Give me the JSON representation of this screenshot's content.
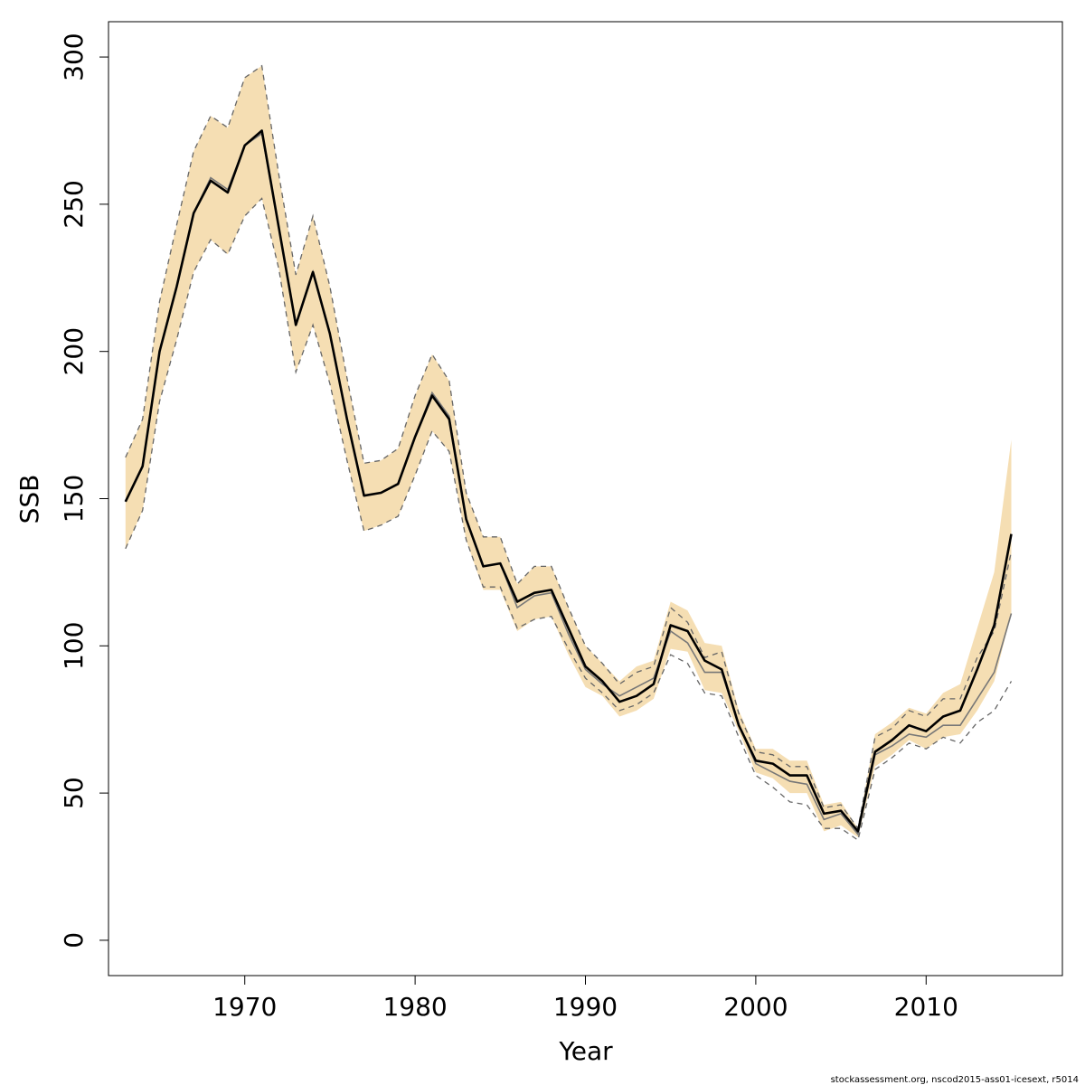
{
  "chart_data": {
    "type": "line",
    "title": "",
    "xlabel": "Year",
    "ylabel": "SSB",
    "xlim": [
      1962,
      2018
    ],
    "ylim": [
      -12,
      312
    ],
    "x_ticks": [
      1970,
      1980,
      1990,
      2000,
      2010
    ],
    "y_ticks": [
      0,
      50,
      100,
      150,
      200,
      250,
      300
    ],
    "grid": false,
    "legend": "none",
    "x": [
      1963,
      1964,
      1965,
      1966,
      1967,
      1968,
      1969,
      1970,
      1971,
      1972,
      1973,
      1974,
      1975,
      1976,
      1977,
      1978,
      1979,
      1980,
      1981,
      1982,
      1983,
      1984,
      1985,
      1986,
      1987,
      1988,
      1989,
      1990,
      1991,
      1992,
      1993,
      1994,
      1995,
      1996,
      1997,
      1998,
      1999,
      2000,
      2001,
      2002,
      2003,
      2004,
      2005,
      2006,
      2007,
      2008,
      2009,
      2010,
      2011,
      2012,
      2013,
      2014,
      2015
    ],
    "series": [
      {
        "role": "upper-bound",
        "values": [
          164,
          177,
          217,
          243,
          268,
          280,
          276,
          293,
          297,
          260,
          226,
          246,
          222,
          191,
          162,
          163,
          167,
          185,
          199,
          190,
          152,
          137,
          137,
          121,
          127,
          127,
          113,
          100,
          94,
          88,
          93,
          95,
          115,
          112,
          101,
          100,
          78,
          65,
          65,
          61,
          61,
          46,
          47,
          38,
          70,
          74,
          79,
          77,
          84,
          87,
          106,
          125,
          170
        ]
      },
      {
        "role": "lower-bound",
        "values": [
          133,
          146,
          183,
          204,
          227,
          238,
          233,
          246,
          252,
          228,
          193,
          209,
          189,
          163,
          139,
          141,
          144,
          158,
          173,
          166,
          136,
          119,
          119,
          105,
          109,
          110,
          97,
          86,
          83,
          76,
          78,
          82,
          99,
          98,
          85,
          84,
          71,
          57,
          55,
          50,
          50,
          37,
          39,
          35,
          59,
          63,
          68,
          65,
          69,
          70,
          78,
          88,
          111
        ]
      },
      {
        "role": "estimate",
        "color": "#000000",
        "values": [
          149,
          161,
          200,
          222,
          247,
          258,
          254,
          270,
          275,
          242,
          209,
          227,
          206,
          177,
          151,
          152,
          155,
          171,
          185,
          177,
          143,
          127,
          128,
          115,
          118,
          119,
          106,
          93,
          88,
          81,
          83,
          87,
          107,
          105,
          95,
          92,
          73,
          61,
          60,
          56,
          56,
          43,
          44,
          37,
          64,
          68,
          73,
          71,
          76,
          78,
          92,
          107,
          138
        ]
      },
      {
        "role": "estimate-retro",
        "color": "#777777",
        "values": [
          149,
          161,
          200,
          222,
          247,
          259,
          255,
          270,
          274,
          242,
          209,
          227,
          206,
          177,
          151,
          152,
          155,
          171,
          186,
          178,
          143,
          127,
          128,
          113,
          117,
          118,
          104,
          92,
          87,
          83,
          86,
          89,
          105,
          101,
          91,
          91,
          73,
          60,
          57,
          54,
          53,
          41,
          43,
          36,
          63,
          66,
          70,
          69,
          73,
          73,
          82,
          91,
          111
        ]
      },
      {
        "role": "upper-retro",
        "color": "#666666",
        "values": [
          164,
          177,
          217,
          243,
          268,
          280,
          276,
          293,
          297,
          260,
          226,
          246,
          222,
          191,
          162,
          163,
          167,
          185,
          199,
          190,
          152,
          137,
          137,
          121,
          127,
          127,
          113,
          100,
          94,
          87,
          91,
          93,
          113,
          108,
          96,
          98,
          77,
          64,
          63,
          59,
          59,
          45,
          46,
          38,
          69,
          72,
          78,
          76,
          82,
          82,
          96,
          105,
          132
        ]
      },
      {
        "role": "lower-retro",
        "color": "#666666",
        "values": [
          133,
          146,
          183,
          204,
          227,
          238,
          233,
          246,
          252,
          228,
          193,
          209,
          189,
          163,
          139,
          141,
          144,
          158,
          173,
          166,
          136,
          120,
          120,
          106,
          109,
          110,
          99,
          89,
          84,
          78,
          80,
          84,
          97,
          94,
          84,
          83,
          69,
          56,
          52,
          47,
          46,
          38,
          38,
          34,
          58,
          62,
          67,
          65,
          69,
          67,
          74,
          78,
          88
        ]
      }
    ]
  },
  "colors": {
    "band_fill": "#f5deb3",
    "estimate_line": "#000000",
    "retro_line": "#777777",
    "bound_dash": "#666666",
    "box": "#000000"
  },
  "footnote": "stockassessment.org, nscod2015-ass01-icesext, r5014"
}
